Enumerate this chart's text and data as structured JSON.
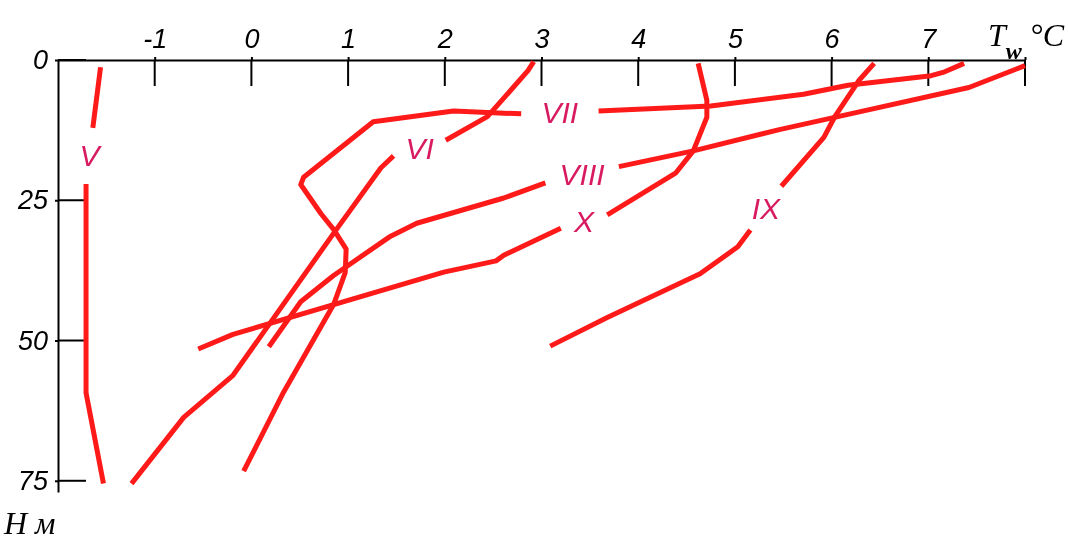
{
  "chart_data": {
    "type": "line",
    "xlabel": "T$_{w}$ °C",
    "ylabel": "Н м",
    "xlim": [
      -2,
      8
    ],
    "xticks": [
      -1,
      0,
      1,
      2,
      3,
      4,
      5,
      6,
      7,
      {
        "value": 8,
        "label": null
      }
    ],
    "ylim": [
      77,
      0
    ],
    "yticks": [
      0,
      25,
      50,
      75
    ],
    "grid": false,
    "marker": "none",
    "line_style": "solid",
    "series": [
      {
        "name": "V",
        "color": "#ff1a1a",
        "x": [
          -1.56,
          -1.64,
          null,
          -1.71,
          -1.71,
          -1.71,
          -1.53
        ],
        "values": [
          1.3,
          12.1,
          null,
          22.1,
          41.9,
          59.3,
          75.5
        ]
      },
      {
        "name": "VI",
        "color": "#ff1a1a",
        "x": [
          2.92,
          2.86,
          2.61,
          2.44,
          2.01,
          null,
          1.47,
          1.34,
          0.85,
          -0.19,
          -0.7,
          -1.24
        ],
        "values": [
          0.3,
          1.9,
          6.8,
          10.1,
          14.3,
          null,
          17.1,
          19.2,
          30.9,
          56.2,
          63.7,
          75.5
        ]
      },
      {
        "name": "VII",
        "color": "#ff1a1a",
        "x": [
          7.37,
          7.17,
          7.03,
          6.17,
          5.71,
          4.75,
          3.59,
          null,
          2.79,
          2.09,
          1.26,
          0.54,
          0.51,
          0.72,
          0.85,
          0.98,
          0.97,
          0.85,
          0.33,
          -0.08
        ],
        "values": [
          0.6,
          2.1,
          2.8,
          4.5,
          6.1,
          8.2,
          9.1,
          null,
          9.6,
          9.1,
          11.0,
          20.9,
          22.2,
          27.4,
          30.2,
          33.7,
          37.9,
          43.6,
          59.3,
          73.3
        ]
      },
      {
        "name": "VIII",
        "color": "#ff1a1a",
        "x": [
          8.0,
          7.42,
          6.17,
          5.46,
          4.57,
          3.8,
          null,
          3.04,
          2.61,
          1.71,
          1.44,
          0.85,
          0.51,
          0.18
        ],
        "values": [
          1.0,
          4.9,
          9.7,
          12.4,
          16.2,
          19.0,
          null,
          21.9,
          24.6,
          29.1,
          31.4,
          38.4,
          43.1,
          51.1
        ]
      },
      {
        "name": "IX",
        "color": "#ff1a1a",
        "x": [
          6.44,
          6.28,
          6.03,
          5.92,
          5.48,
          null,
          5.16,
          5.03,
          4.64,
          3.68,
          3.09
        ],
        "values": [
          0.6,
          3.7,
          10.2,
          13.8,
          22.5,
          null,
          30.3,
          33.3,
          38.1,
          45.9,
          51.0
        ]
      },
      {
        "name": "X",
        "color": "#ff1a1a",
        "x": [
          4.62,
          4.71,
          4.71,
          4.57,
          4.39,
          3.68,
          null,
          3.2,
          2.61,
          2.53,
          1.99,
          -0.19,
          -0.55
        ],
        "values": [
          0.6,
          7.2,
          10.2,
          16.2,
          20.1,
          27.6,
          null,
          30.0,
          34.8,
          35.8,
          37.8,
          48.9,
          51.5
        ]
      }
    ]
  }
}
